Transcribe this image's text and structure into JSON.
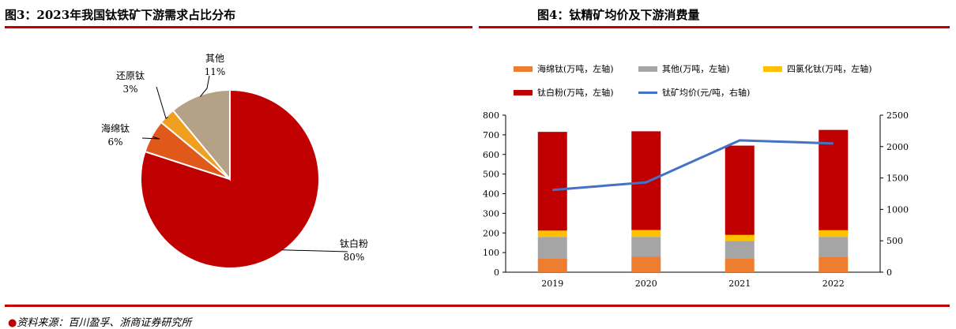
{
  "left_title": "图3：2023年我国钛铁矿下游需求占比分布",
  "right_title": "图4：钛精矿均价及下游消费量",
  "source": "资料来源：百川盈孚、浙商证券研究所",
  "colors": {
    "accent_red": "#c00000"
  },
  "chart_data": [
    {
      "type": "pie",
      "title": "",
      "slices": [
        {
          "name": "钛白粉",
          "value": 80,
          "label": "80%",
          "color": "#c00000"
        },
        {
          "name": "海绵钛",
          "value": 6,
          "label": "6%",
          "color": "#e0591a"
        },
        {
          "name": "还原钛",
          "value": 3,
          "label": "3%",
          "color": "#f0a020"
        },
        {
          "name": "其他",
          "value": 11,
          "label": "11%",
          "color": "#b5a185"
        }
      ]
    },
    {
      "type": "bar",
      "stacked": true,
      "categories": [
        "2019",
        "2020",
        "2021",
        "2022"
      ],
      "ylim": [
        0,
        800
      ],
      "yticks": [
        "0",
        "100",
        "200",
        "300",
        "400",
        "500",
        "600",
        "700",
        "800"
      ],
      "y2lim": [
        0,
        2500
      ],
      "y2ticks": [
        "0",
        "500",
        "1000",
        "1500",
        "2000",
        "2500"
      ],
      "series": [
        {
          "name": "海绵钛(万吨，左轴)",
          "color": "#ed7d31",
          "values": [
            70,
            80,
            70,
            78
          ]
        },
        {
          "name": "其他(万吨，左轴)",
          "color": "#a5a5a5",
          "values": [
            110,
            100,
            90,
            102
          ]
        },
        {
          "name": "四氯化钛(万吨，左轴)",
          "color": "#ffc000",
          "values": [
            32,
            35,
            30,
            34
          ]
        },
        {
          "name": "钛白粉(万吨，左轴)",
          "color": "#c00000",
          "values": [
            503,
            503,
            455,
            511
          ]
        }
      ],
      "line_series": {
        "name": "钛矿均价(元/吨，右轴)",
        "color": "#4472c4",
        "values": [
          1310,
          1430,
          2100,
          2050
        ]
      }
    }
  ]
}
